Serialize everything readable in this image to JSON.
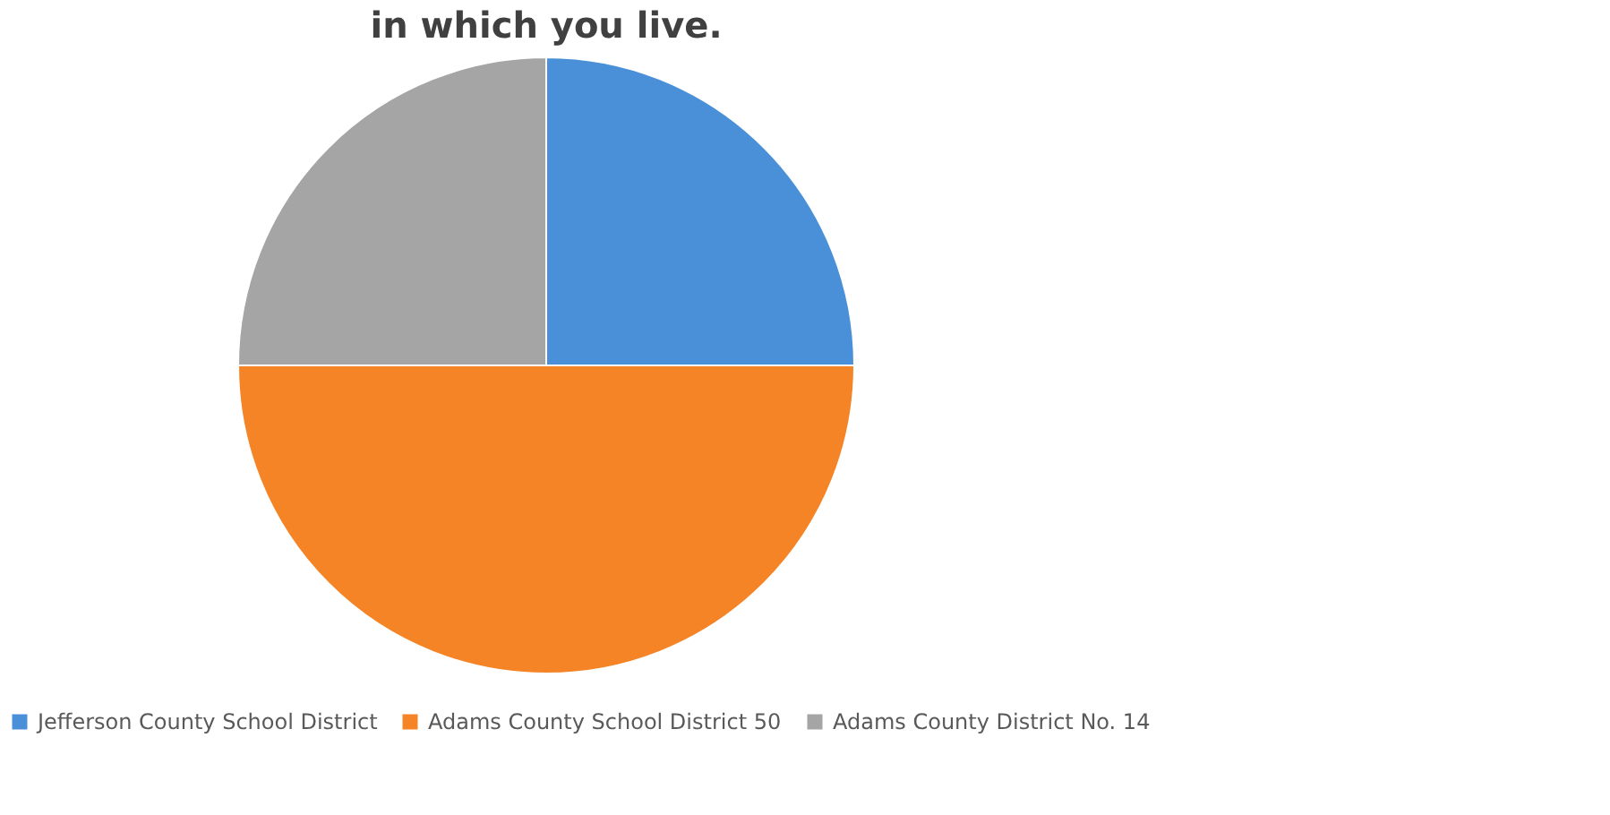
{
  "chart_data": {
    "type": "pie",
    "title": "in which you live.",
    "categories": [
      "Jefferson County School District",
      "Adams County School District 50",
      "Adams County District No. 14"
    ],
    "values": [
      25,
      50,
      25
    ],
    "colors": [
      "#4a90d9",
      "#f58426",
      "#a5a5a5"
    ],
    "legend": "bottom"
  }
}
